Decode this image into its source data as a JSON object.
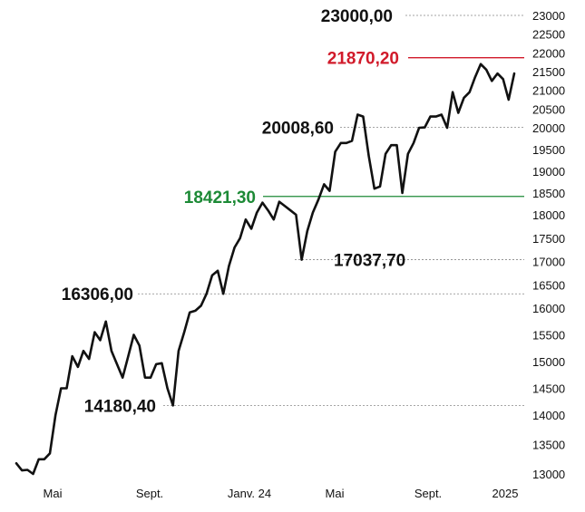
{
  "chart_data": {
    "type": "line",
    "title": "",
    "xlabel": "",
    "ylabel": "",
    "ylim": [
      13000,
      23000
    ],
    "y_ticks": [
      "23000",
      "22500",
      "22000",
      "21500",
      "21000",
      "20500",
      "20000",
      "19500",
      "19000",
      "18500",
      "18000",
      "17500",
      "17000",
      "16500",
      "16000",
      "15500",
      "15000",
      "14500",
      "14000",
      "13500",
      "13000"
    ],
    "y_tick_values": [
      23000,
      22500,
      22000,
      21500,
      21000,
      20500,
      20000,
      19500,
      19000,
      18500,
      18000,
      17500,
      17000,
      16500,
      16000,
      15500,
      15000,
      14500,
      14000,
      13500,
      13000
    ],
    "x_ticks": [
      "Mai",
      "Sept.",
      "Janv. 24",
      "Mai",
      "Sept.",
      "2025"
    ],
    "x_tick_weeks": [
      6,
      23,
      40,
      57,
      74,
      91
    ],
    "grid": false,
    "x_unit": "weeks",
    "series": [
      {
        "color": "#111111",
        "values": [
          13180,
          13060,
          13070,
          13000,
          13250,
          13250,
          13350,
          14000,
          14500,
          14500,
          15100,
          14900,
          15200,
          15050,
          15550,
          15400,
          15750,
          15200,
          14950,
          14700,
          15100,
          15500,
          15300,
          14700,
          14700,
          14950,
          14970,
          14500,
          14180.4,
          15200,
          15550,
          15920,
          15950,
          16050,
          16306,
          16700,
          16800,
          16306,
          16900,
          17300,
          17500,
          17900,
          17700,
          18050,
          18280,
          18100,
          17900,
          18300,
          18200,
          18100,
          18000,
          17037.7,
          17650,
          18050,
          18350,
          18700,
          18550,
          19450,
          19650,
          19650,
          19700,
          20350,
          20300,
          19350,
          18600,
          18650,
          19400,
          19600,
          19600,
          18500,
          19400,
          19650,
          20000,
          20008.6,
          20300,
          20300,
          20350,
          20000,
          20950,
          20400,
          20800,
          20950,
          21350,
          21700,
          21550,
          21250,
          21450,
          21300,
          20750,
          21450
        ]
      }
    ],
    "reference_lines": [
      {
        "value": 23000,
        "label": "23000,00",
        "color": "#111111",
        "style": "dashed"
      },
      {
        "value": 21870.2,
        "label": "21870,20",
        "color": "#d11a2a",
        "style": "solid"
      },
      {
        "value": 20008.6,
        "label": "20008,60",
        "color": "#111111",
        "style": "dashed"
      },
      {
        "value": 18421.3,
        "label": "18421,30",
        "color": "#1d8a36",
        "style": "solid"
      },
      {
        "value": 17037.7,
        "label": "17037,70",
        "color": "#111111",
        "style": "dashed"
      },
      {
        "value": 16306,
        "label": "16306,00",
        "color": "#111111",
        "style": "dashed"
      },
      {
        "value": 14180.4,
        "label": "14180,40",
        "color": "#111111",
        "style": "dashed"
      }
    ]
  }
}
